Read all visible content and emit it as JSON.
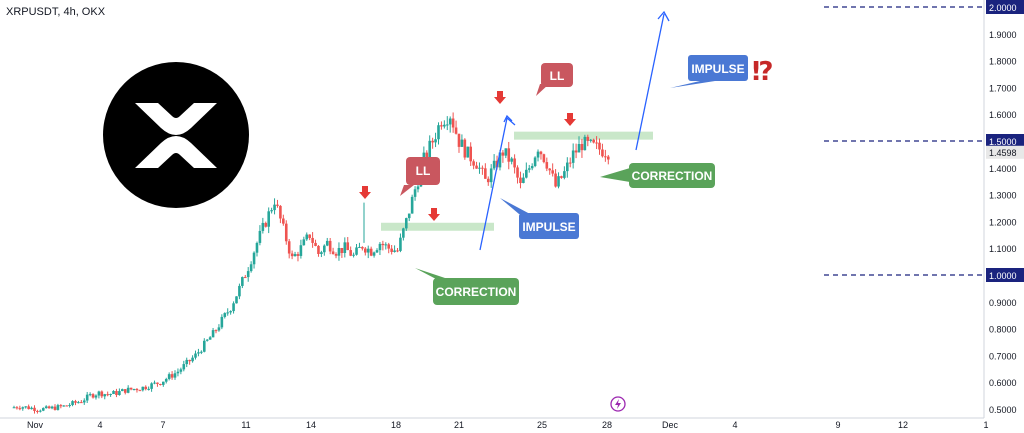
{
  "header": {
    "symbol_title": "XRPUSDT, 4h, OKX"
  },
  "logo": {
    "name": "xrp-logo",
    "colors": {
      "background": "#000000",
      "mark": "#ffffff"
    }
  },
  "colors": {
    "up_candle": "#26a69a",
    "down_candle": "#ef5350",
    "resistance_zone": "#bfe3bf",
    "arrow_line": "#2962ff",
    "level_line": "#1a237e",
    "callout_impulse": "#4a78d4",
    "callout_correction": "#5aa35a",
    "callout_ll": "#c9575f",
    "marker_arrow": "#e53935",
    "interrobang": "#c62828",
    "current_price_box": "#e8e8e8"
  },
  "chart_data": {
    "type": "candlestick",
    "title": "XRPUSDT, 4h, OKX",
    "x_axis": {
      "tick_labels": [
        "Nov",
        "4",
        "7",
        "11",
        "14",
        "18",
        "21",
        "25",
        "28",
        "Dec",
        "4",
        "9",
        "12",
        "1"
      ]
    },
    "y_axis": {
      "ylim": [
        0.5,
        2.05
      ],
      "tick_labels": [
        "0.5000",
        "0.6000",
        "0.7000",
        "0.8000",
        "0.9000",
        "1.0000",
        "1.1000",
        "1.2000",
        "1.3000",
        "1.4000",
        "1.5000",
        "1.6000",
        "1.7000",
        "1.8000",
        "1.9000",
        "2.0000"
      ],
      "highlighted_labels": [
        "1.0000",
        "1.5000",
        "2.0000"
      ],
      "current_price": "1.4598"
    },
    "horizontal_levels": [
      1.0,
      1.5,
      2.0
    ],
    "annotations": {
      "callouts": [
        {
          "id": "ll-1",
          "text": "LL"
        },
        {
          "id": "ll-2",
          "text": "LL"
        },
        {
          "id": "impulse-1",
          "text": "IMPULSE"
        },
        {
          "id": "impulse-2",
          "text": "IMPULSE"
        },
        {
          "id": "correction-1",
          "text": "CORRECTION"
        },
        {
          "id": "correction-2",
          "text": "CORRECTION"
        }
      ],
      "interrobang": "⁉",
      "resistance_zones": [
        {
          "id": "zone-1",
          "price": 1.17
        },
        {
          "id": "zone-2",
          "price": 1.52
        }
      ],
      "down_markers": 4
    },
    "price_path": [
      0.505,
      0.51,
      0.505,
      0.5,
      0.5,
      0.505,
      0.51,
      0.52,
      0.53,
      0.55,
      0.56,
      0.555,
      0.56,
      0.57,
      0.575,
      0.58,
      0.59,
      0.6,
      0.62,
      0.64,
      0.67,
      0.7,
      0.74,
      0.78,
      0.83,
      0.88,
      0.95,
      1.03,
      1.12,
      1.2,
      1.28,
      1.17,
      1.06,
      1.1,
      1.15,
      1.08,
      1.12,
      1.09,
      1.1,
      1.07,
      1.11,
      1.09,
      1.12,
      1.1,
      1.09,
      1.2,
      1.32,
      1.43,
      1.5,
      1.58,
      1.6,
      1.5,
      1.45,
      1.42,
      1.35,
      1.4,
      1.46,
      1.42,
      1.33,
      1.4,
      1.48,
      1.42,
      1.33,
      1.38,
      1.45,
      1.49,
      1.48,
      1.47,
      1.46
    ]
  }
}
